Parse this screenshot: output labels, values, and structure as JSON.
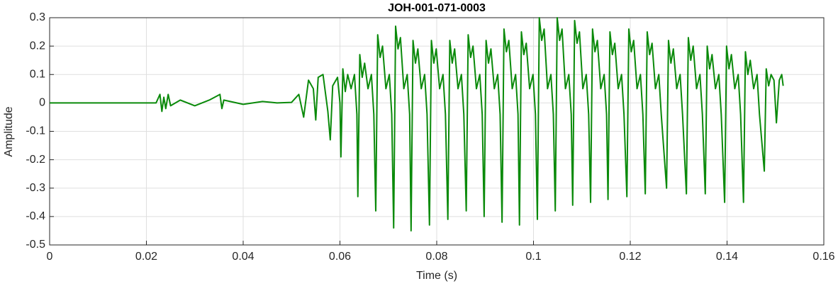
{
  "chart_data": {
    "type": "line",
    "title": "JOH-001-071-0003",
    "xlabel": "Time (s)",
    "ylabel": "Amplitude",
    "color": "#0a8a0a",
    "grid": true,
    "xlim": [
      0,
      0.16
    ],
    "xticks": [
      0,
      0.02,
      0.04,
      0.06,
      0.08,
      0.1,
      0.12,
      0.14,
      0.16
    ],
    "ylim": [
      -0.5,
      0.3
    ],
    "yticks": [
      0.3,
      0.2,
      0.1,
      0,
      -0.1,
      -0.2,
      -0.3,
      -0.4,
      -0.5
    ],
    "x": [
      0,
      0.022,
      0.0228,
      0.0232,
      0.0236,
      0.024,
      0.0245,
      0.025,
      0.027,
      0.03,
      0.033,
      0.0352,
      0.0356,
      0.036,
      0.04,
      0.044,
      0.047,
      0.05,
      0.0515,
      0.0525,
      0.0535,
      0.0545,
      0.055,
      0.0555,
      0.0565,
      0.0575,
      0.058,
      0.0585,
      0.0595,
      0.06,
      0.0602,
      0.0606,
      0.0611,
      0.0616,
      0.0623,
      0.063,
      0.0635,
      0.0637,
      0.0641,
      0.0646,
      0.0651,
      0.0658,
      0.0665,
      0.067,
      0.0674,
      0.0678,
      0.0683,
      0.0688,
      0.0695,
      0.0702,
      0.0707,
      0.0711,
      0.0715,
      0.072,
      0.0725,
      0.0732,
      0.0739,
      0.0744,
      0.0747,
      0.0751,
      0.0756,
      0.0761,
      0.0768,
      0.0775,
      0.078,
      0.0785,
      0.0789,
      0.0794,
      0.0799,
      0.0806,
      0.0813,
      0.0818,
      0.0823,
      0.0827,
      0.0832,
      0.0837,
      0.0844,
      0.0851,
      0.0856,
      0.0861,
      0.0865,
      0.087,
      0.0875,
      0.0882,
      0.0889,
      0.0894,
      0.0898,
      0.0902,
      0.0907,
      0.0912,
      0.0919,
      0.0926,
      0.0931,
      0.0935,
      0.0939,
      0.0944,
      0.0949,
      0.0956,
      0.0963,
      0.0968,
      0.0971,
      0.0975,
      0.098,
      0.0985,
      0.0992,
      0.0999,
      0.1004,
      0.1008,
      0.1012,
      0.1017,
      0.1022,
      0.1029,
      0.1036,
      0.1041,
      0.1045,
      0.1049,
      0.1054,
      0.1059,
      0.1066,
      0.1073,
      0.1078,
      0.1081,
      0.1085,
      0.109,
      0.1095,
      0.1102,
      0.1109,
      0.1114,
      0.1118,
      0.1122,
      0.1127,
      0.1132,
      0.1139,
      0.1146,
      0.1151,
      0.1154,
      0.1158,
      0.1163,
      0.1168,
      0.1175,
      0.1182,
      0.1187,
      0.1193,
      0.1197,
      0.1202,
      0.1207,
      0.1214,
      0.1221,
      0.1226,
      0.1231,
      0.1235,
      0.124,
      0.1245,
      0.1252,
      0.1259,
      0.1264,
      0.1275,
      0.1279,
      0.1284,
      0.1289,
      0.1296,
      0.1303,
      0.1308,
      0.1316,
      0.132,
      0.1325,
      0.133,
      0.1337,
      0.1344,
      0.1349,
      0.1355,
      0.1359,
      0.1364,
      0.1369,
      0.1376,
      0.1383,
      0.1388,
      0.1395,
      0.1399,
      0.1404,
      0.1409,
      0.1416,
      0.1423,
      0.1428,
      0.1434,
      0.1438,
      0.1443,
      0.1448,
      0.1455,
      0.1462,
      0.1467,
      0.1477,
      0.1481,
      0.1486,
      0.1491,
      0.1497,
      0.1502,
      0.1508,
      0.1513,
      0.1516
    ],
    "values": [
      0,
      0,
      0.03,
      -0.03,
      0.02,
      -0.02,
      0.03,
      -0.01,
      0.01,
      -0.01,
      0.01,
      0.03,
      -0.02,
      0.01,
      -0.005,
      0.005,
      0,
      0.002,
      0.03,
      -0.05,
      0.08,
      0.05,
      -0.06,
      0.09,
      0.1,
      -0.03,
      -0.13,
      0.06,
      0.09,
      0,
      -0.19,
      0.12,
      0.04,
      0.1,
      0.05,
      0.1,
      -0.04,
      -0.33,
      0.17,
      0.09,
      0.14,
      0.05,
      0.1,
      -0.04,
      -0.38,
      0.24,
      0.16,
      0.2,
      0.05,
      0.1,
      -0.04,
      -0.44,
      0.27,
      0.19,
      0.23,
      0.05,
      0.1,
      -0.04,
      -0.45,
      0.22,
      0.14,
      0.19,
      0.05,
      0.1,
      -0.04,
      -0.43,
      0.22,
      0.14,
      0.19,
      0.05,
      0.1,
      -0.04,
      -0.41,
      0.22,
      0.14,
      0.19,
      0.05,
      0.1,
      -0.04,
      -0.38,
      0.24,
      0.16,
      0.2,
      0.05,
      0.1,
      -0.04,
      -0.4,
      0.22,
      0.14,
      0.19,
      0.05,
      0.1,
      -0.04,
      -0.42,
      0.26,
      0.18,
      0.22,
      0.05,
      0.1,
      -0.04,
      -0.43,
      0.25,
      0.17,
      0.21,
      0.05,
      0.1,
      -0.04,
      -0.41,
      0.3,
      0.22,
      0.26,
      0.05,
      0.1,
      -0.04,
      -0.38,
      0.3,
      0.22,
      0.26,
      0.05,
      0.1,
      -0.04,
      -0.36,
      0.29,
      0.21,
      0.25,
      0.05,
      0.1,
      -0.04,
      -0.35,
      0.26,
      0.18,
      0.22,
      0.05,
      0.1,
      -0.04,
      -0.34,
      0.25,
      0.17,
      0.21,
      0.05,
      0.1,
      -0.04,
      -0.33,
      0.26,
      0.18,
      0.22,
      0.05,
      0.1,
      -0.04,
      -0.32,
      0.25,
      0.17,
      0.21,
      0.05,
      0.1,
      -0.04,
      -0.3,
      0.22,
      0.14,
      0.19,
      0.05,
      0.1,
      -0.04,
      -0.32,
      0.23,
      0.15,
      0.2,
      0.05,
      0.1,
      -0.04,
      -0.32,
      0.2,
      0.12,
      0.17,
      0.05,
      0.1,
      -0.04,
      -0.35,
      0.2,
      0.12,
      0.17,
      0.05,
      0.1,
      -0.04,
      -0.35,
      0.18,
      0.1,
      0.15,
      0.05,
      0.1,
      -0.04,
      -0.24,
      0.12,
      0.06,
      0.1,
      0.08,
      -0.07,
      0.08,
      0.1,
      0.06
    ]
  }
}
